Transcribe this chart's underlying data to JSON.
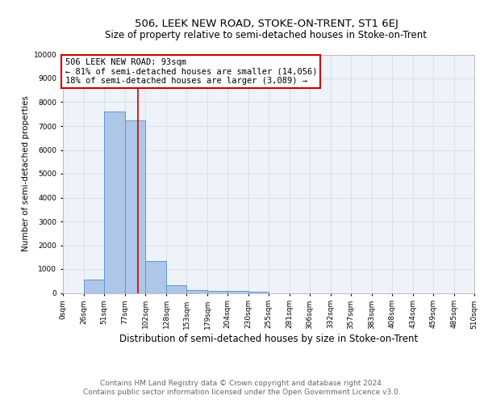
{
  "title": "506, LEEK NEW ROAD, STOKE-ON-TRENT, ST1 6EJ",
  "subtitle": "Size of property relative to semi-detached houses in Stoke-on-Trent",
  "xlabel": "Distribution of semi-detached houses by size in Stoke-on-Trent",
  "ylabel": "Number of semi-detached properties",
  "bin_edges": [
    0,
    26,
    51,
    77,
    102,
    128,
    153,
    179,
    204,
    230,
    255,
    281,
    306,
    332,
    357,
    383,
    408,
    434,
    459,
    485,
    510
  ],
  "counts": [
    0,
    550,
    7600,
    7250,
    1350,
    330,
    130,
    100,
    80,
    50,
    0,
    0,
    0,
    0,
    0,
    0,
    0,
    0,
    0,
    0
  ],
  "bar_color": "#aec6e8",
  "bar_edge_color": "#5b9bd5",
  "property_size": 93,
  "vline_color": "#cc0000",
  "annotation_line1": "506 LEEK NEW ROAD: 93sqm",
  "annotation_line2": "← 81% of semi-detached houses are smaller (14,056)",
  "annotation_line3": "18% of semi-detached houses are larger (3,089) →",
  "annotation_box_color": "#cc0000",
  "ylim": [
    0,
    10000
  ],
  "yticks": [
    0,
    1000,
    2000,
    3000,
    4000,
    5000,
    6000,
    7000,
    8000,
    9000,
    10000
  ],
  "x_tick_labels": [
    "0sqm",
    "26sqm",
    "51sqm",
    "77sqm",
    "102sqm",
    "128sqm",
    "153sqm",
    "179sqm",
    "204sqm",
    "230sqm",
    "255sqm",
    "281sqm",
    "306sqm",
    "332sqm",
    "357sqm",
    "383sqm",
    "408sqm",
    "434sqm",
    "459sqm",
    "485sqm",
    "510sqm"
  ],
  "footer_line1": "Contains HM Land Registry data © Crown copyright and database right 2024.",
  "footer_line2": "Contains public sector information licensed under the Open Government Licence v3.0.",
  "title_fontsize": 9.5,
  "subtitle_fontsize": 8.5,
  "xlabel_fontsize": 8.5,
  "ylabel_fontsize": 7.5,
  "tick_fontsize": 6.5,
  "annotation_fontsize": 7.5,
  "footer_fontsize": 6.5,
  "grid_color": "#d8e0ed",
  "background_color": "#eef2f9"
}
